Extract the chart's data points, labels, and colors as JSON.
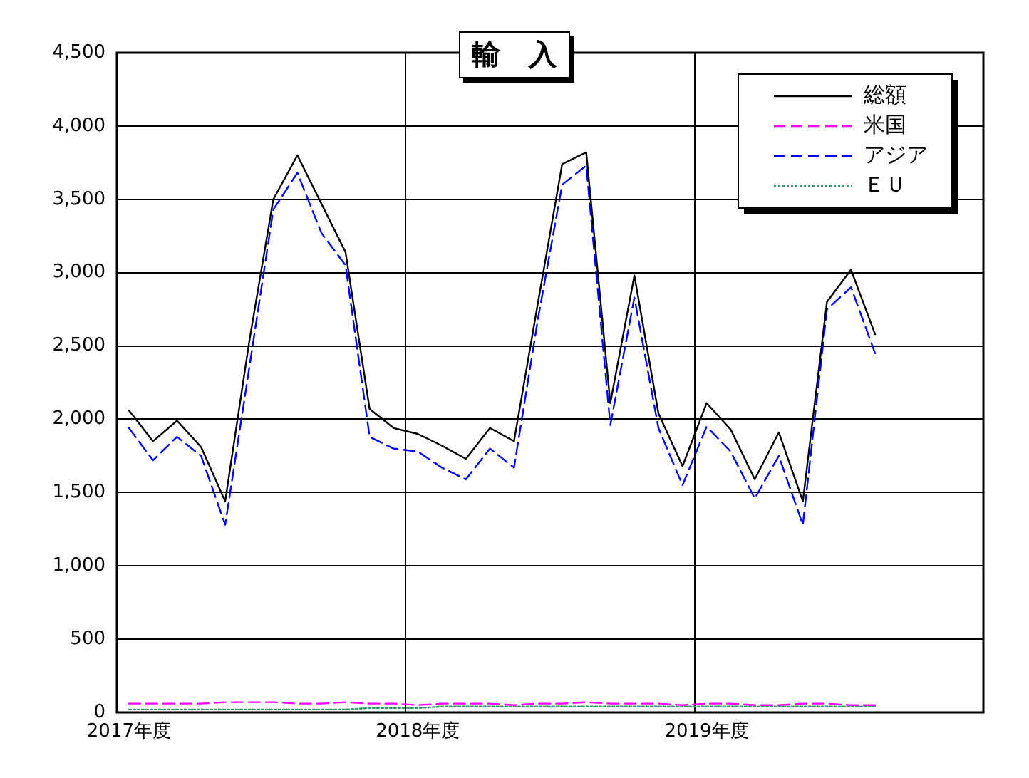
{
  "chart_data": {
    "type": "line",
    "title": "輸　入",
    "categories": [
      "2017年度",
      null,
      null,
      null,
      null,
      null,
      null,
      null,
      null,
      null,
      null,
      null,
      "2018年度",
      null,
      null,
      null,
      null,
      null,
      null,
      null,
      null,
      null,
      null,
      null,
      "2019年度",
      null,
      null,
      null,
      null,
      null,
      null,
      null,
      null,
      null,
      null,
      null
    ],
    "ylim": [
      0,
      4500
    ],
    "yticks": [
      {
        "value": 0,
        "label": "0"
      },
      {
        "value": 500,
        "label": "500"
      },
      {
        "value": 1000,
        "label": "1,000"
      },
      {
        "value": 1500,
        "label": "1,500"
      },
      {
        "value": 2000,
        "label": "2,000"
      },
      {
        "value": 2500,
        "label": "2,500"
      },
      {
        "value": 3000,
        "label": "3,000"
      },
      {
        "value": 3500,
        "label": "3,500"
      },
      {
        "value": 4000,
        "label": "4,000"
      },
      {
        "value": 4500,
        "label": "4,500"
      }
    ],
    "grid": true,
    "legend": "top right",
    "series": [
      {
        "name": "総額",
        "color": "#000000",
        "line_style": "solid",
        "values": [
          2060,
          1850,
          1990,
          1810,
          1440,
          2530,
          3500,
          3800,
          3470,
          3140,
          2070,
          1940,
          1900,
          1820,
          1730,
          1940,
          1850,
          2800,
          3740,
          3820,
          2110,
          2980,
          2040,
          1680,
          2110,
          1930,
          1590,
          1910,
          1440,
          2800,
          3020,
          2580,
          null,
          null,
          null,
          null
        ]
      },
      {
        "name": "米国",
        "color": "#ff00ff",
        "line_style": "dashed",
        "values": [
          60,
          60,
          60,
          60,
          70,
          70,
          70,
          60,
          60,
          70,
          60,
          60,
          50,
          60,
          60,
          60,
          50,
          60,
          60,
          70,
          60,
          60,
          60,
          50,
          60,
          60,
          50,
          50,
          60,
          60,
          50,
          50,
          null,
          null,
          null,
          null
        ]
      },
      {
        "name": "アジア",
        "color": "#0000ff",
        "line_style": "dashed",
        "values": [
          1940,
          1720,
          1880,
          1750,
          1280,
          2350,
          3430,
          3680,
          3270,
          3050,
          1880,
          1800,
          1780,
          1670,
          1590,
          1800,
          1670,
          2690,
          3600,
          3730,
          1960,
          2830,
          1940,
          1550,
          1950,
          1780,
          1460,
          1750,
          1280,
          2750,
          2900,
          2450,
          null,
          null,
          null,
          null
        ]
      },
      {
        "name": "ＥＵ",
        "color": "#339966",
        "line_style": "dotted",
        "values": [
          20,
          20,
          20,
          20,
          20,
          20,
          20,
          20,
          20,
          20,
          30,
          30,
          30,
          40,
          40,
          40,
          40,
          40,
          40,
          40,
          40,
          40,
          40,
          40,
          40,
          40,
          40,
          40,
          40,
          40,
          40,
          40,
          null,
          null,
          null,
          null
        ]
      }
    ]
  }
}
